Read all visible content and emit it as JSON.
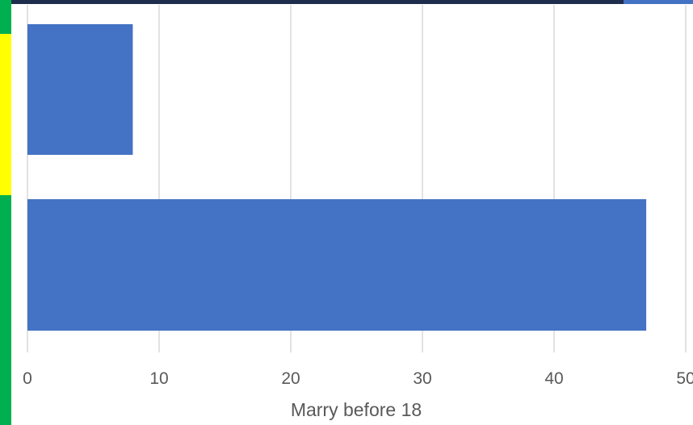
{
  "chart_data": {
    "type": "bar",
    "orientation": "horizontal",
    "categories": [
      "",
      ""
    ],
    "values": [
      8,
      47
    ],
    "xlabel": "Marry before 18",
    "ylabel": "",
    "xlim": [
      0,
      50
    ],
    "xticks": [
      0,
      10,
      20,
      30,
      40,
      50
    ],
    "grid": true,
    "bar_color": "#4472C4"
  },
  "theme": {
    "top_bar_color": "#1f2d4d",
    "top_bar_accent": "#4472C4",
    "side_strip_colors": [
      "#00b050",
      "#ffff00",
      "#00b050"
    ],
    "gridline_color": "#d9d9d9"
  }
}
